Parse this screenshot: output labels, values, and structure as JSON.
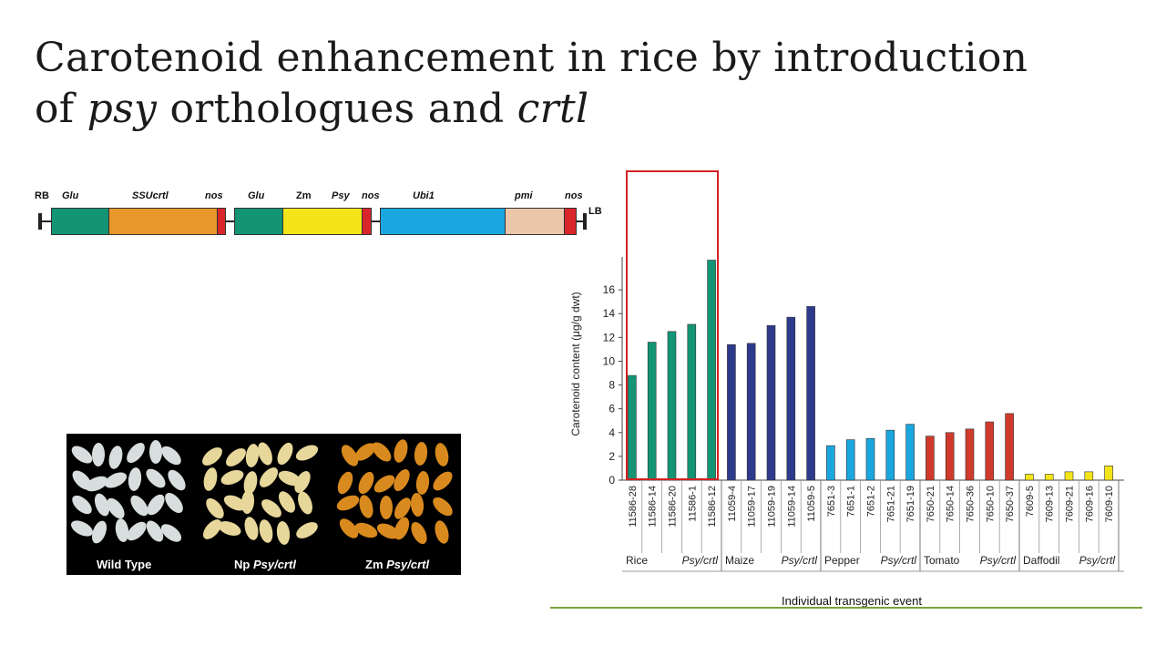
{
  "title": {
    "line1": "Carotenoid enhancement in rice by introduction",
    "line2_part1": "of ",
    "line2_italic1": "psy",
    "line2_part2": " orthologues and ",
    "line2_italic2": "crtl"
  },
  "construct": {
    "labels": {
      "rb": "RB",
      "glu1": "Glu",
      "ssucrtl": "SSUcrtl",
      "nos1": "nos",
      "glu2": "Glu",
      "zm": "Zm",
      "psy": "Psy",
      "nos2": "nos",
      "ubi1": "Ubi1",
      "pmi": "pmi",
      "nos3": "nos",
      "lb": "LB"
    },
    "colors": {
      "glu": "#139474",
      "ssucrtl": "#e8972a",
      "nos": "#d9262b",
      "psy": "#f4e51a",
      "ubi1": "#1aa7e0",
      "pmi": "#ecc6a8"
    }
  },
  "photo": {
    "labels": {
      "wild_type": "Wild Type",
      "np_prefix": "Np ",
      "np_italic": "Psy/crtl",
      "zm_prefix": "Zm ",
      "zm_italic": "Psy/crtl"
    },
    "grain_colors": {
      "wild_type": "#d8dede",
      "np": "#e7d79a",
      "zm": "#d98a1e"
    }
  },
  "chart_data": {
    "type": "bar",
    "ylabel": "Carotenoid content (μg/g dwt)",
    "xlabel": "Individual transgenic event",
    "ylim": [
      0,
      18
    ],
    "yticks": [
      0,
      2,
      4,
      6,
      8,
      10,
      12,
      14,
      16
    ],
    "groups": [
      {
        "name": "Rice",
        "construct": "Psy/crtl",
        "color": "#139474",
        "categories": [
          "11586-28",
          "11586-14",
          "11586-20",
          "11586-1",
          "11586-12"
        ],
        "values": [
          8.8,
          11.6,
          12.5,
          13.1,
          18.5
        ]
      },
      {
        "name": "Maize",
        "construct": "Psy/crtl",
        "color": "#2d3a8c",
        "categories": [
          "11059-4",
          "11059-17",
          "11059-19",
          "11059-14",
          "11059-5"
        ],
        "values": [
          11.4,
          11.5,
          13.0,
          13.7,
          14.6
        ]
      },
      {
        "name": "Pepper",
        "construct": "Psy/crtl",
        "color": "#1aa7e0",
        "categories": [
          "7651-3",
          "7651-1",
          "7651-2",
          "7651-21",
          "7651-19"
        ],
        "values": [
          2.9,
          3.4,
          3.5,
          4.2,
          4.7
        ]
      },
      {
        "name": "Tomato",
        "construct": "Psy/crtl",
        "color": "#d03a2c",
        "categories": [
          "7650-21",
          "7650-14",
          "7650-36",
          "7650-10",
          "7650-37"
        ],
        "values": [
          3.7,
          4.0,
          4.3,
          4.9,
          5.6
        ]
      },
      {
        "name": "Daffodil",
        "construct": "Psy/crtl",
        "color": "#f4e51a",
        "categories": [
          "7609-5",
          "7609-13",
          "7609-21",
          "7609-16",
          "7609-10"
        ],
        "values": [
          0.5,
          0.5,
          0.7,
          0.7,
          1.2
        ]
      }
    ],
    "highlight_group": "Rice",
    "highlight_color": "#d42020",
    "grid": false
  }
}
